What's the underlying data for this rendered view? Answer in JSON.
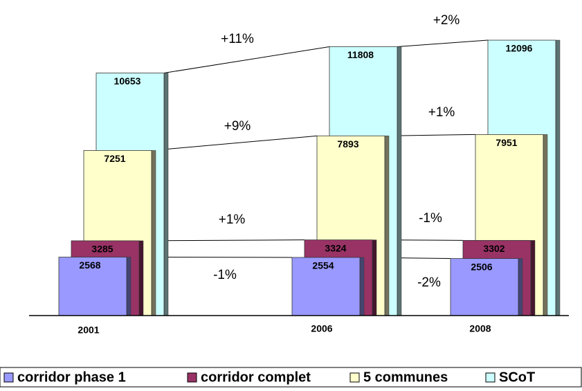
{
  "chart_data": {
    "type": "bar",
    "categories": [
      "2001",
      "2006",
      "2008"
    ],
    "series": [
      {
        "name": "corridor phase 1",
        "color": "#9999ff",
        "values": [
          2568,
          2554,
          2506
        ]
      },
      {
        "name": "corridor complet",
        "color": "#993366",
        "values": [
          3285,
          3324,
          3302
        ]
      },
      {
        "name": "5 communes",
        "color": "#ffffcc",
        "values": [
          7251,
          7893,
          7951
        ]
      },
      {
        "name": "SCoT",
        "color": "#ccffff",
        "values": [
          10653,
          11808,
          12096
        ]
      }
    ],
    "annotations": [
      "+11%",
      "+2%",
      "+9%",
      "+1%",
      "+1%",
      "-1%",
      "-1%",
      "-2%"
    ],
    "legend": "bottom"
  }
}
